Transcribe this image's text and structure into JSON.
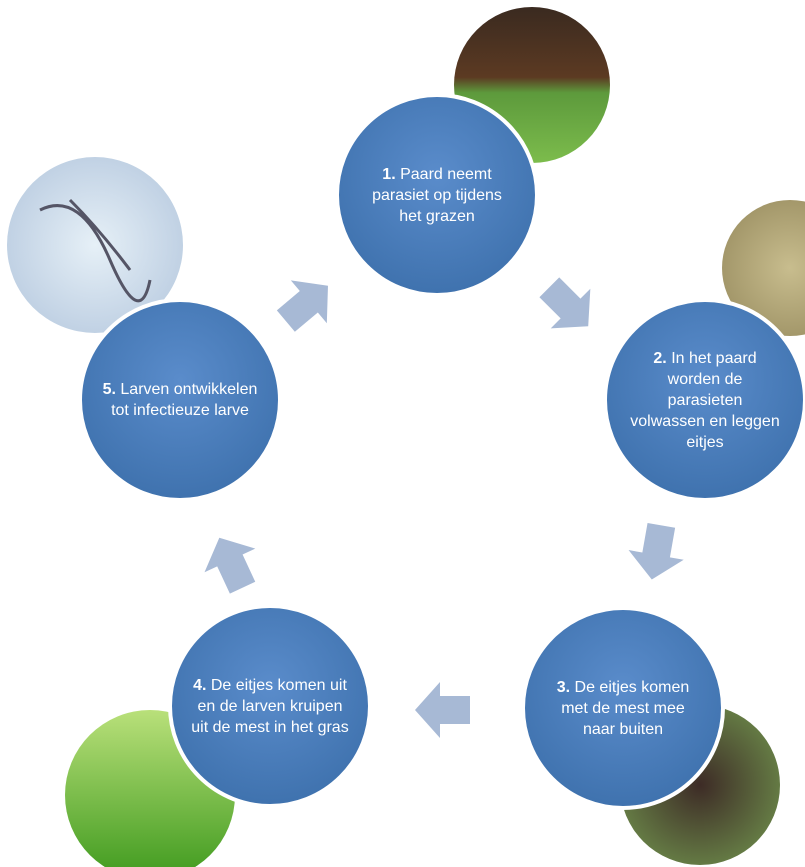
{
  "nodes": [
    {
      "number": "1.",
      "label": "Paard neemt parasiet op tijdens het grazen"
    },
    {
      "number": "2.",
      "label": "In het paard worden de parasieten volwassen en leggen eitjes"
    },
    {
      "number": "3.",
      "label": "De eitjes komen met de mest mee naar buiten"
    },
    {
      "number": "4.",
      "label": "De eitjes komen uit en de larven kruipen uit de mest in het gras"
    },
    {
      "number": "5.",
      "label": "Larven ontwikkelen tot infectieuze larve"
    }
  ]
}
